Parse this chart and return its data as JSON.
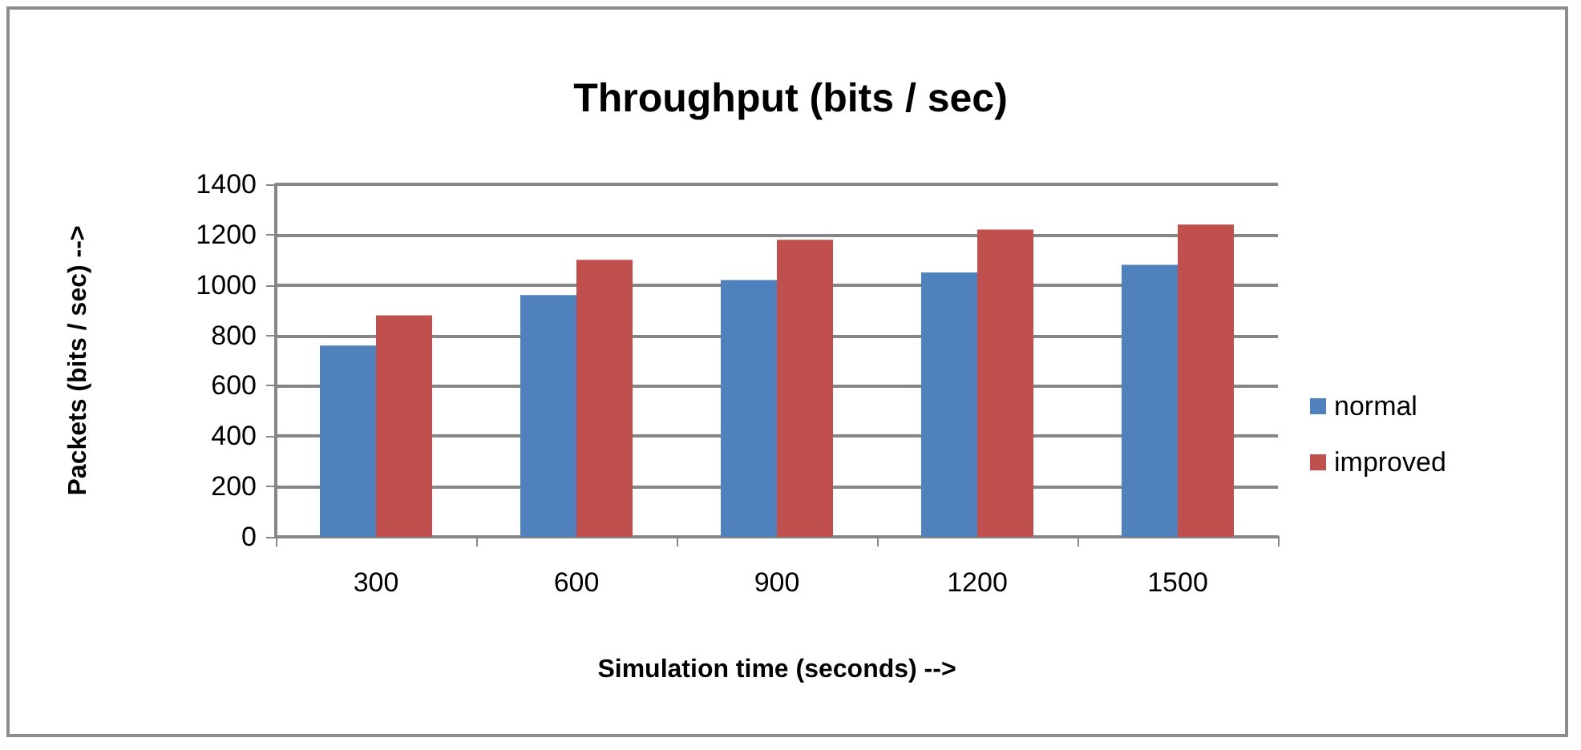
{
  "chart_data": {
    "type": "bar",
    "title": "Throughput (bits / sec)",
    "xlabel": "Simulation time (seconds) -->",
    "ylabel": "Packets (bits / sec) -->",
    "categories": [
      "300",
      "600",
      "900",
      "1200",
      "1500"
    ],
    "series": [
      {
        "name": "normal",
        "color": "#4f81bd",
        "values": [
          760,
          960,
          1020,
          1050,
          1080
        ]
      },
      {
        "name": "improved",
        "color": "#c0504d",
        "values": [
          880,
          1100,
          1180,
          1220,
          1240
        ]
      }
    ],
    "ylim": [
      0,
      1400
    ],
    "yticks": [
      0,
      200,
      400,
      600,
      800,
      {
        "value": 1000,
        "label": "1000"
      },
      {
        "value": 1200,
        "label": "1200"
      },
      {
        "value": 1400,
        "label": "1400"
      }
    ],
    "grid": "y",
    "legend": "right"
  }
}
